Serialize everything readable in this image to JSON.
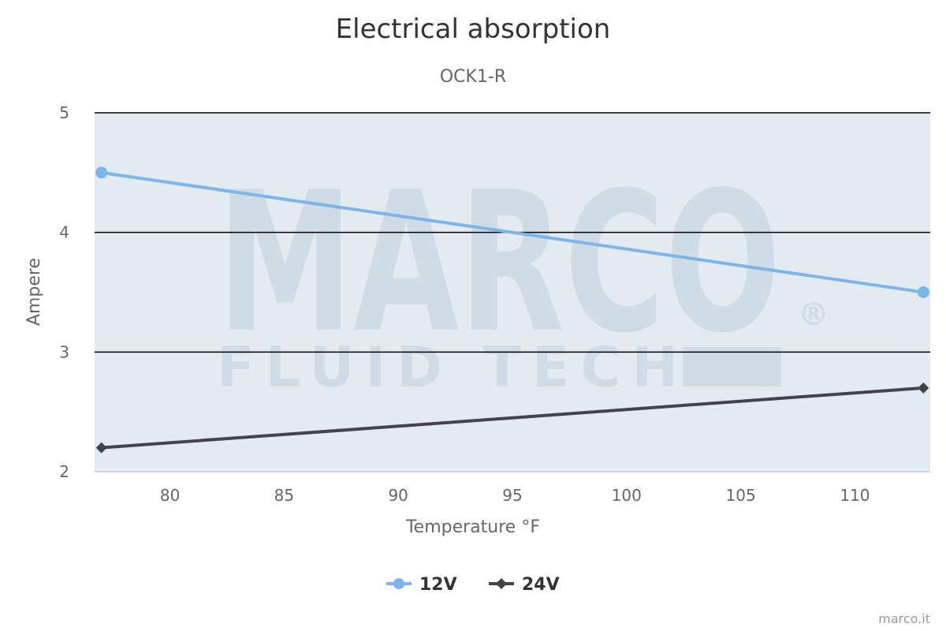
{
  "chart_data": {
    "type": "line",
    "title": "Electrical absorption",
    "subtitle": "OCK1-R",
    "xlabel": "Temperature °F",
    "ylabel": "Ampere",
    "xlim": [
      76.7,
      113.3
    ],
    "ylim": [
      2,
      5
    ],
    "x_ticks": [
      80,
      85,
      90,
      95,
      100,
      105,
      110
    ],
    "y_ticks": [
      2,
      3,
      4,
      5
    ],
    "grid": true,
    "legend_position": "bottom-center",
    "plot_background": "#e3ebf1",
    "series": [
      {
        "name": "12V",
        "color": "#7cb5ec",
        "marker": "circle",
        "x": [
          77,
          113
        ],
        "y": [
          4.5,
          3.5
        ]
      },
      {
        "name": "24V",
        "color": "#434348",
        "marker": "diamond",
        "x": [
          77,
          113
        ],
        "y": [
          2.2,
          2.7
        ]
      }
    ],
    "credit": "marco.it"
  },
  "watermark": {
    "brand": "MARCO",
    "tagline": "FLUID TECH",
    "mark": "®"
  }
}
